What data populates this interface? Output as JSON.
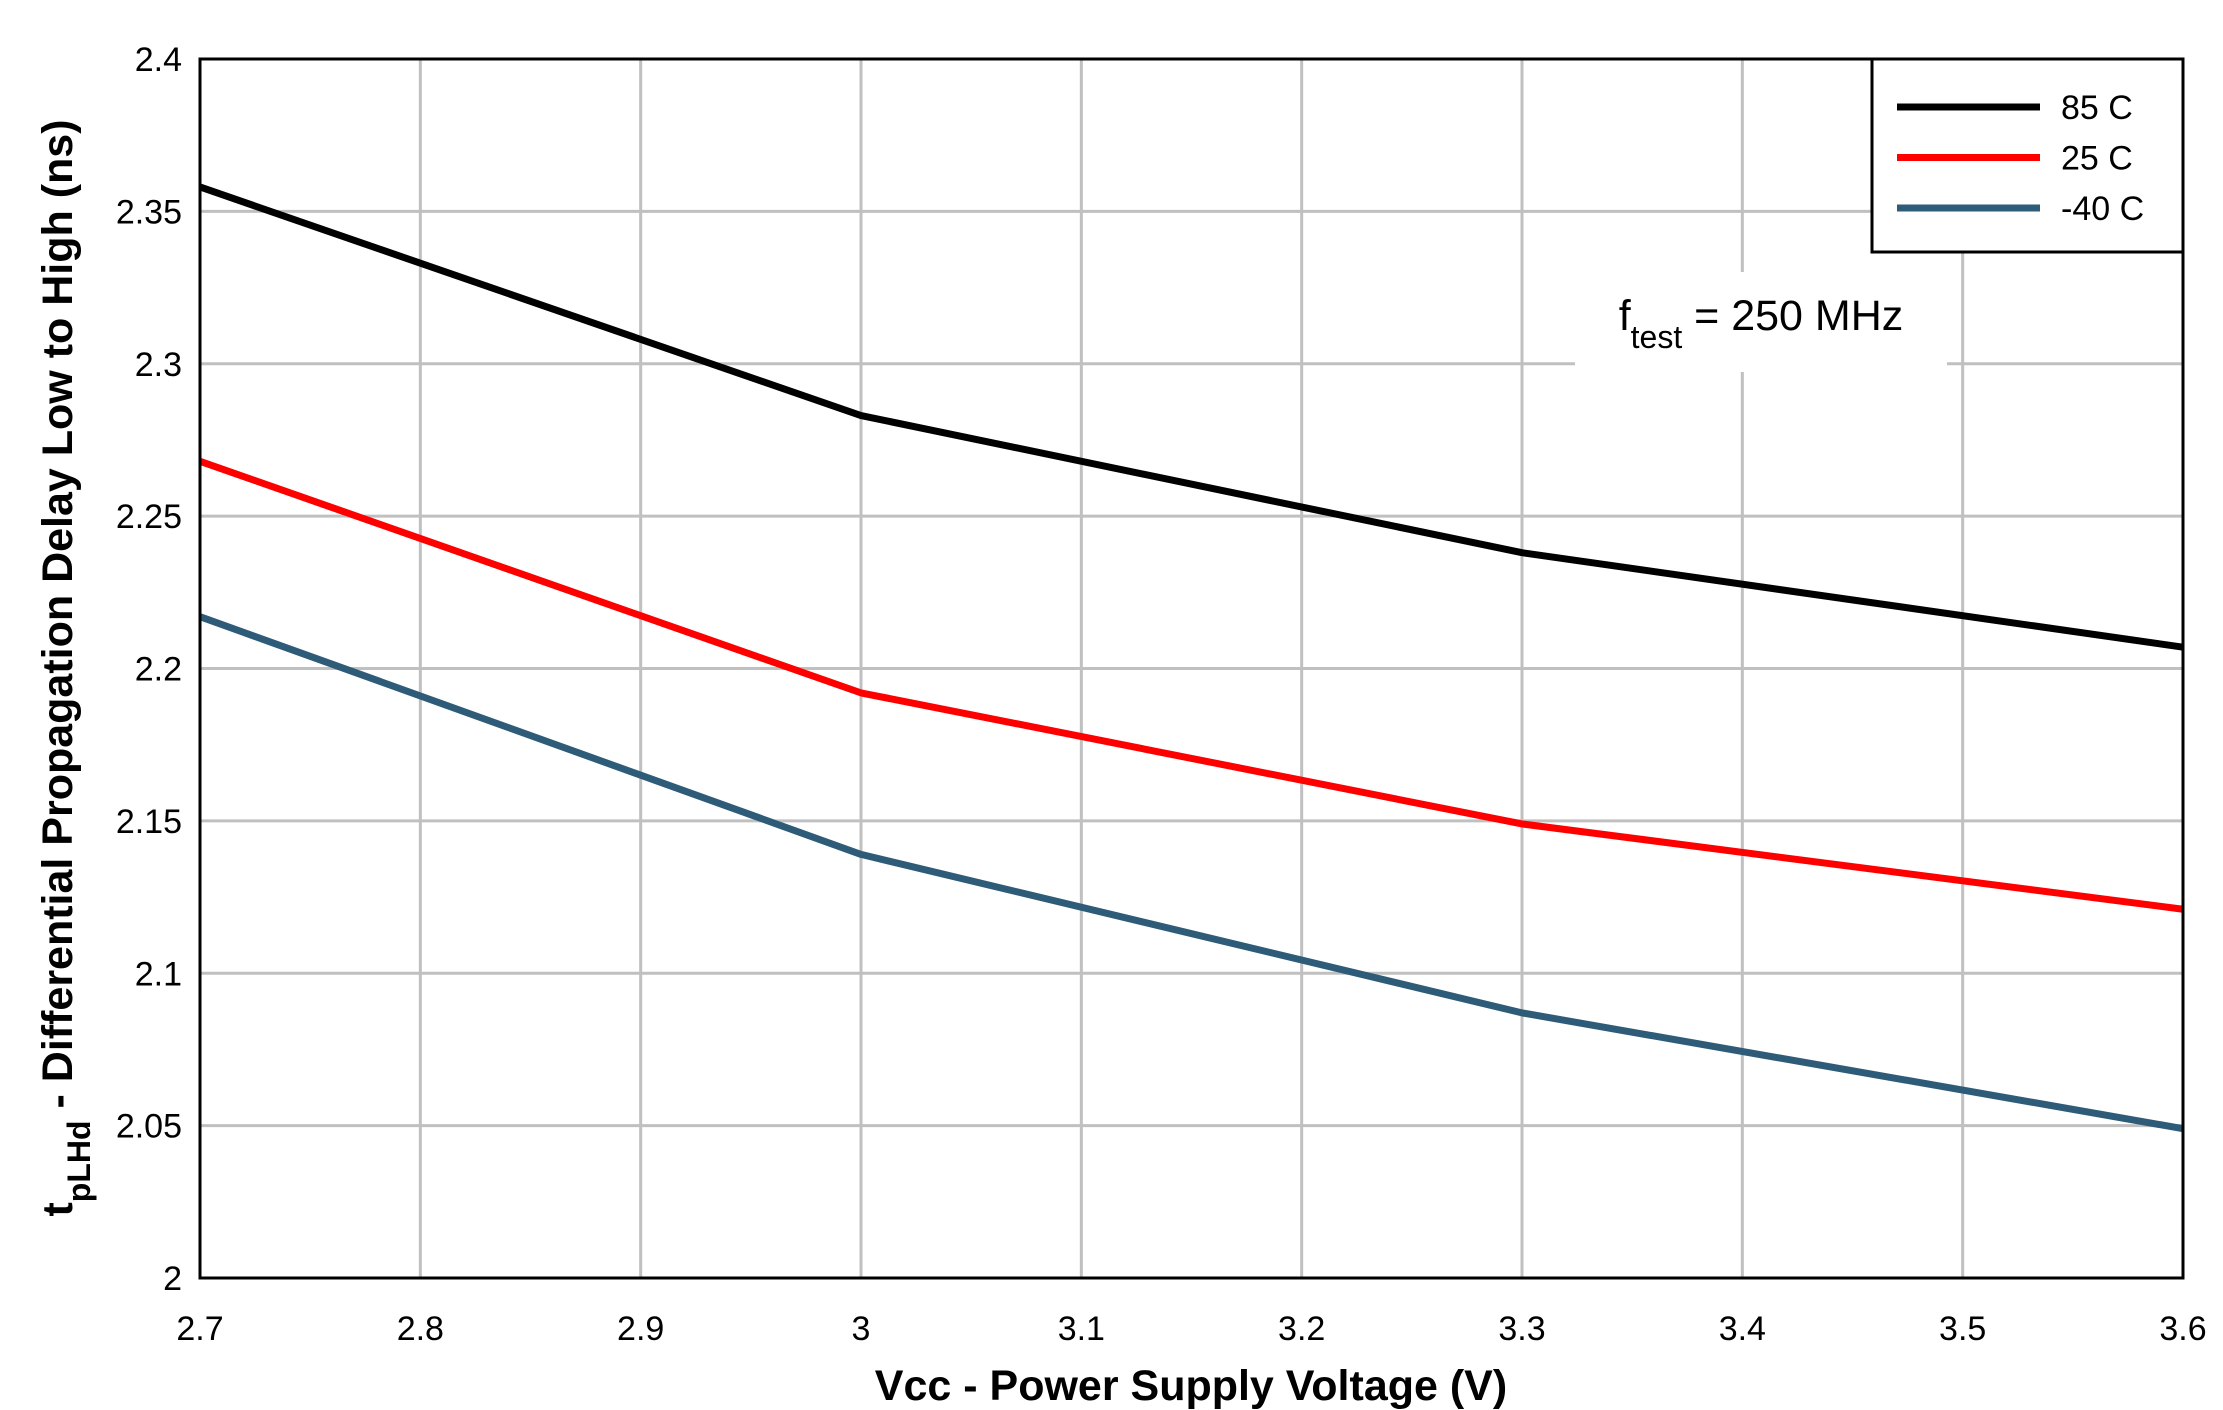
{
  "chart_data": {
    "type": "line",
    "x": [
      2.7,
      3.0,
      3.3,
      3.6
    ],
    "series": [
      {
        "name": "85 C",
        "color": "#000000",
        "values": [
          2.358,
          2.283,
          2.238,
          2.207
        ]
      },
      {
        "name": "25 C",
        "color": "#ff0000",
        "values": [
          2.268,
          2.192,
          2.149,
          2.121
        ]
      },
      {
        "name": "-40 C",
        "color": "#2e5b78",
        "values": [
          2.217,
          2.139,
          2.087,
          2.049
        ]
      }
    ],
    "xlim": [
      2.7,
      3.6
    ],
    "xticks": [
      2.7,
      2.8,
      2.9,
      3,
      3.1,
      3.2,
      3.3,
      3.4,
      3.5,
      3.6
    ],
    "ylim": [
      2,
      2.4
    ],
    "yticks": [
      2,
      2.05,
      2.1,
      2.15,
      2.2,
      2.25,
      2.3,
      2.35,
      2.4
    ],
    "grid": true,
    "legend": "top-right",
    "x_label": "Vcc - Power Supply Voltage  (V)",
    "y_label": {
      "base": "t",
      "subscript": "pLHd",
      "text": " - Differential Propagation Delay Low to High (ns)"
    },
    "annotation": {
      "base": "f",
      "subscript": "test",
      "text": " = 250 MHz"
    }
  }
}
